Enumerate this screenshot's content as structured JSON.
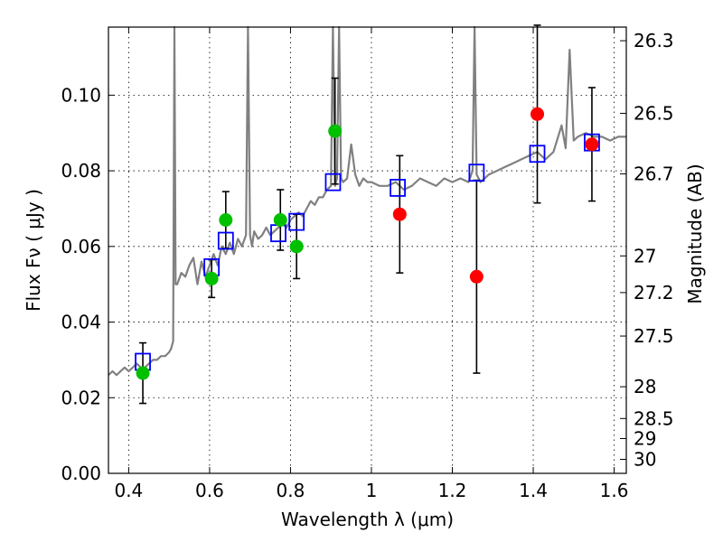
{
  "chart_data": {
    "type": "scatter",
    "xlabel": "Wavelength  λ (μm)",
    "ylabel_left": "Flux  Fν  ( μJy )",
    "ylabel_right": "Magnitude (AB)",
    "xlim": [
      0.35,
      1.63
    ],
    "ylim": [
      0.0,
      0.118
    ],
    "grid": true,
    "x_ticks": [
      {
        "value": 0.4,
        "label": "0.4"
      },
      {
        "value": 0.6,
        "label": "0.6"
      },
      {
        "value": 0.8,
        "label": "0.8"
      },
      {
        "value": 1.0,
        "label": "1"
      },
      {
        "value": 1.2,
        "label": "1.2"
      },
      {
        "value": 1.4,
        "label": "1.4"
      },
      {
        "value": 1.6,
        "label": "1.6"
      }
    ],
    "y_ticks": [
      {
        "value": 0.0,
        "label": "0.00"
      },
      {
        "value": 0.02,
        "label": "0.02"
      },
      {
        "value": 0.04,
        "label": "0.04"
      },
      {
        "value": 0.06,
        "label": "0.06"
      },
      {
        "value": 0.08,
        "label": "0.08"
      },
      {
        "value": 0.1,
        "label": "0.10"
      }
    ],
    "right_ticks": [
      {
        "flux": 0.1144,
        "label": "26.3"
      },
      {
        "flux": 0.0952,
        "label": "26.5"
      },
      {
        "flux": 0.0792,
        "label": "26.7"
      },
      {
        "flux": 0.0575,
        "label": "27"
      },
      {
        "flux": 0.0478,
        "label": "27.2"
      },
      {
        "flux": 0.0363,
        "label": "27.5"
      },
      {
        "flux": 0.0229,
        "label": "28"
      },
      {
        "flux": 0.0145,
        "label": "28.5"
      },
      {
        "flux": 0.0092,
        "label": "29"
      },
      {
        "flux": 0.0037,
        "label": "30"
      }
    ],
    "model_spectrum": {
      "color": "#808080",
      "x": [
        0.35,
        0.36,
        0.37,
        0.38,
        0.39,
        0.4,
        0.41,
        0.42,
        0.43,
        0.44,
        0.45,
        0.46,
        0.47,
        0.48,
        0.49,
        0.5,
        0.505,
        0.51,
        0.513,
        0.516,
        0.52,
        0.53,
        0.54,
        0.55,
        0.56,
        0.57,
        0.58,
        0.59,
        0.6,
        0.61,
        0.62,
        0.63,
        0.64,
        0.65,
        0.66,
        0.67,
        0.68,
        0.69,
        0.695,
        0.7,
        0.705,
        0.71,
        0.72,
        0.73,
        0.74,
        0.75,
        0.76,
        0.77,
        0.78,
        0.79,
        0.8,
        0.81,
        0.82,
        0.83,
        0.84,
        0.85,
        0.86,
        0.87,
        0.88,
        0.89,
        0.9,
        0.905,
        0.91,
        0.915,
        0.92,
        0.925,
        0.93,
        0.94,
        0.95,
        0.96,
        0.97,
        0.98,
        0.99,
        1.0,
        1.02,
        1.04,
        1.06,
        1.08,
        1.1,
        1.12,
        1.14,
        1.16,
        1.18,
        1.2,
        1.22,
        1.24,
        1.25,
        1.255,
        1.26,
        1.265,
        1.27,
        1.29,
        1.31,
        1.33,
        1.35,
        1.37,
        1.39,
        1.41,
        1.43,
        1.45,
        1.47,
        1.48,
        1.49,
        1.5,
        1.51,
        1.53,
        1.55,
        1.57,
        1.59,
        1.61,
        1.63
      ],
      "y": [
        0.026,
        0.027,
        0.026,
        0.027,
        0.028,
        0.027,
        0.028,
        0.029,
        0.028,
        0.028,
        0.029,
        0.03,
        0.03,
        0.031,
        0.031,
        0.032,
        0.033,
        0.035,
        0.118,
        0.05,
        0.05,
        0.053,
        0.052,
        0.055,
        0.057,
        0.05,
        0.056,
        0.052,
        0.055,
        0.058,
        0.055,
        0.06,
        0.058,
        0.061,
        0.058,
        0.062,
        0.06,
        0.063,
        0.118,
        0.063,
        0.06,
        0.064,
        0.062,
        0.063,
        0.065,
        0.063,
        0.064,
        0.065,
        0.066,
        0.065,
        0.067,
        0.068,
        0.069,
        0.068,
        0.07,
        0.072,
        0.071,
        0.073,
        0.073,
        0.075,
        0.076,
        0.118,
        0.076,
        0.078,
        0.118,
        0.078,
        0.077,
        0.078,
        0.087,
        0.079,
        0.076,
        0.078,
        0.077,
        0.077,
        0.076,
        0.076,
        0.077,
        0.075,
        0.076,
        0.078,
        0.077,
        0.076,
        0.078,
        0.077,
        0.078,
        0.077,
        0.08,
        0.118,
        0.079,
        0.078,
        0.077,
        0.079,
        0.08,
        0.081,
        0.082,
        0.083,
        0.084,
        0.085,
        0.083,
        0.085,
        0.092,
        0.086,
        0.112,
        0.088,
        0.089,
        0.09,
        0.089,
        0.089,
        0.088,
        0.089,
        0.089
      ]
    },
    "series": [
      {
        "marker": "square",
        "color": "#0000ff",
        "x": [
          0.435,
          0.605,
          0.64,
          0.77,
          0.815,
          0.905,
          1.065,
          1.26,
          1.41,
          1.545
        ],
        "y": [
          0.0295,
          0.0545,
          0.0615,
          0.0635,
          0.0665,
          0.077,
          0.0755,
          0.0795,
          0.0845,
          0.0875
        ]
      },
      {
        "marker": "circle",
        "color": "#00c000",
        "x": [
          0.435,
          0.605,
          0.64,
          0.775,
          0.815,
          0.91
        ],
        "y": [
          0.0265,
          0.0515,
          0.067,
          0.067,
          0.06,
          0.0905
        ],
        "err": [
          0.008,
          0.005,
          0.0075,
          0.008,
          0.0085,
          0.014
        ]
      },
      {
        "marker": "circle",
        "color": "#ff0000",
        "x": [
          1.07,
          1.26,
          1.41,
          1.545
        ],
        "y": [
          0.0685,
          0.052,
          0.095,
          0.087
        ],
        "err": [
          0.0155,
          0.0255,
          0.0235,
          0.015
        ]
      }
    ]
  }
}
